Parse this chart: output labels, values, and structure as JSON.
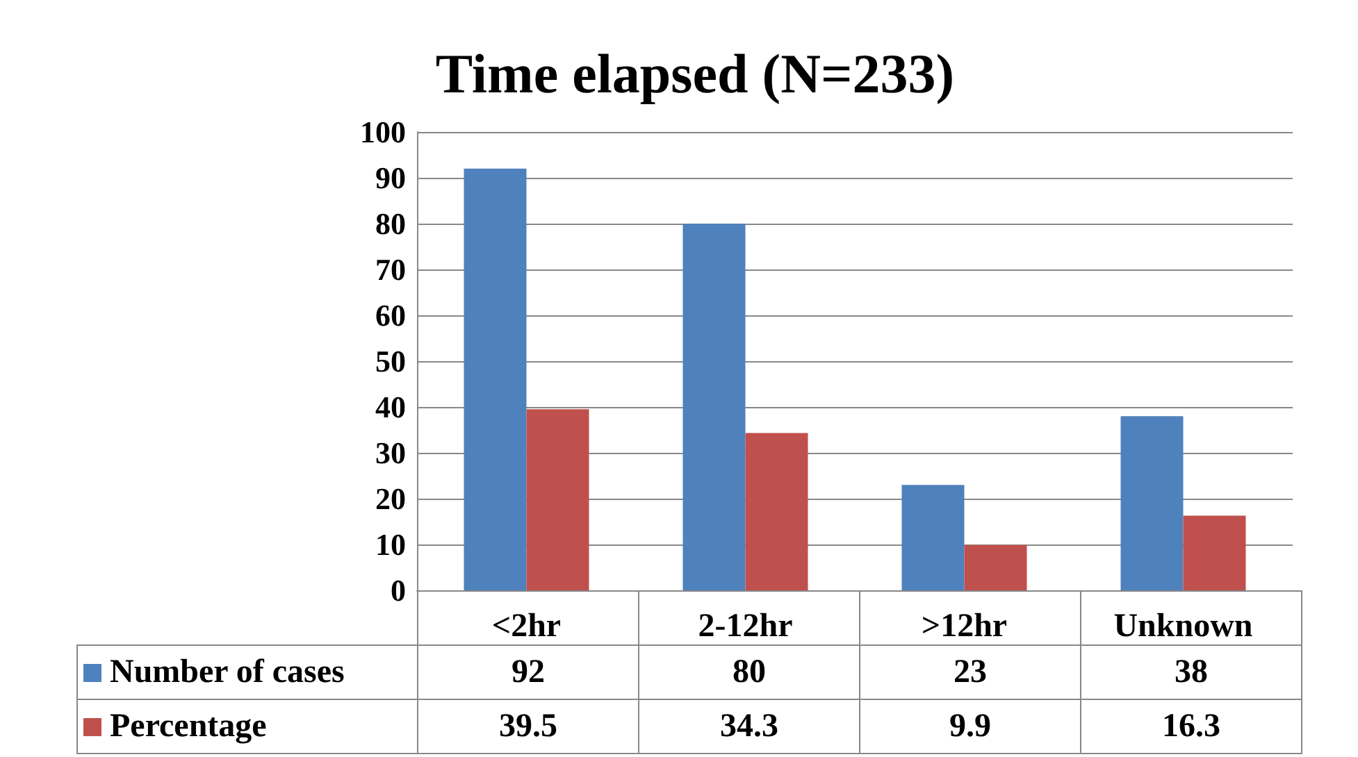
{
  "chart_data": {
    "type": "bar",
    "title": "Time elapsed (N=233)",
    "categories": [
      "<2hr",
      "2-12hr",
      ">12hr",
      "Unknown"
    ],
    "series": [
      {
        "name": "Number of cases",
        "color": "#4f81bd",
        "values": [
          92,
          80,
          23,
          38
        ]
      },
      {
        "name": "Percentage",
        "color": "#c0504d",
        "values": [
          39.5,
          34.3,
          9.9,
          16.3
        ]
      }
    ],
    "ylim": [
      0,
      100
    ],
    "yticks": [
      0,
      10,
      20,
      30,
      40,
      50,
      60,
      70,
      80,
      90,
      100
    ],
    "grid": "y",
    "data_labels": true,
    "legend": "bottom"
  }
}
